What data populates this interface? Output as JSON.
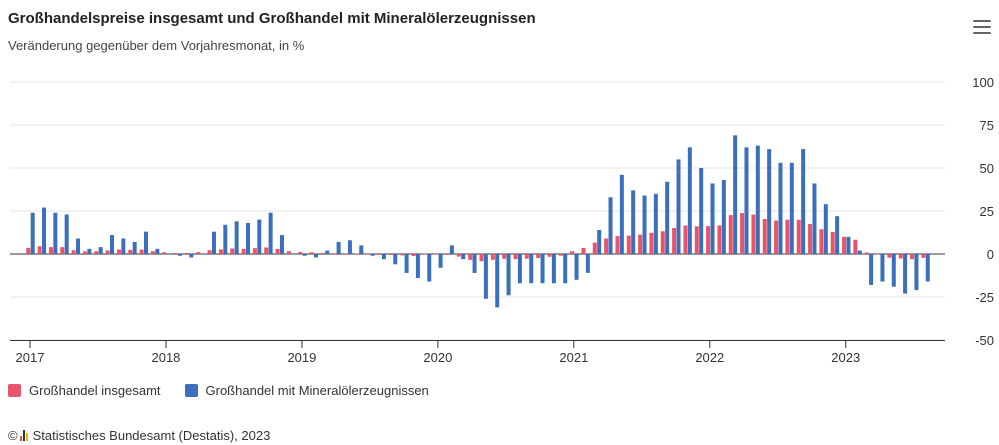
{
  "header": {
    "title": "Großhandelspreise insgesamt und Großhandel mit Mineralölerzeugnissen",
    "subtitle": "Veränderung gegenüber dem Vorjahresmonat, in %"
  },
  "menu_icon": "hamburger-menu-icon",
  "credit": {
    "copyright": "©",
    "text": "Statistisches Bundesamt (Destatis), 2023"
  },
  "colors": {
    "series1": "#e8546b",
    "series2": "#3a6fbe",
    "grid": "#e6e6e6",
    "axis": "#333333"
  },
  "chart_data": {
    "type": "bar",
    "title": "Großhandelspreise insgesamt und Großhandel mit Mineralölerzeugnissen",
    "subtitle": "Veränderung gegenüber dem Vorjahresmonat, in %",
    "xlabel": "",
    "ylabel": "",
    "ylim": [
      -50,
      100
    ],
    "yticks": [
      -50,
      -25,
      0,
      25,
      50,
      75,
      100
    ],
    "x_tick_labels": [
      "2017",
      "2018",
      "2019",
      "2020",
      "2021",
      "2022",
      "2023"
    ],
    "grid": true,
    "legend_position": "bottom-left",
    "period": "2017-01 to 2023-08 (monthly)",
    "categories": [
      "2017-01",
      "2017-02",
      "2017-03",
      "2017-04",
      "2017-05",
      "2017-06",
      "2017-07",
      "2017-08",
      "2017-09",
      "2017-10",
      "2017-11",
      "2017-12",
      "2018-01",
      "2018-02",
      "2018-03",
      "2018-04",
      "2018-05",
      "2018-06",
      "2018-07",
      "2018-08",
      "2018-09",
      "2018-10",
      "2018-11",
      "2018-12",
      "2019-01",
      "2019-02",
      "2019-03",
      "2019-04",
      "2019-05",
      "2019-06",
      "2019-07",
      "2019-08",
      "2019-09",
      "2019-10",
      "2019-11",
      "2019-12",
      "2020-01",
      "2020-02",
      "2020-03",
      "2020-04",
      "2020-05",
      "2020-06",
      "2020-07",
      "2020-08",
      "2020-09",
      "2020-10",
      "2020-11",
      "2020-12",
      "2021-01",
      "2021-02",
      "2021-03",
      "2021-04",
      "2021-05",
      "2021-06",
      "2021-07",
      "2021-08",
      "2021-09",
      "2021-10",
      "2021-11",
      "2021-12",
      "2022-01",
      "2022-02",
      "2022-03",
      "2022-04",
      "2022-05",
      "2022-06",
      "2022-07",
      "2022-08",
      "2022-09",
      "2022-10",
      "2022-11",
      "2022-12",
      "2023-01",
      "2023-02",
      "2023-03",
      "2023-04",
      "2023-05",
      "2023-06",
      "2023-07",
      "2023-08"
    ],
    "series": [
      {
        "name": "Großhandel insgesamt",
        "values": [
          3.6,
          4.5,
          4.0,
          4.0,
          2.2,
          1.5,
          1.6,
          2.1,
          2.6,
          2.4,
          2.6,
          1.6,
          1.0,
          0.6,
          0.6,
          1.1,
          2.2,
          2.7,
          3.2,
          3.0,
          3.4,
          3.8,
          3.0,
          1.6,
          1.2,
          1.0,
          0.6,
          0.4,
          0.4,
          0.2,
          -0.2,
          -0.5,
          -0.6,
          -0.8,
          -1.2,
          0.3,
          -0.1,
          -0.5,
          -1.5,
          -3.4,
          -4.2,
          -3.4,
          -2.8,
          -3.0,
          -2.7,
          -2.3,
          -1.6,
          -1.0,
          1.6,
          3.5,
          6.6,
          9.0,
          10.4,
          10.7,
          11.3,
          12.3,
          13.2,
          15.1,
          16.6,
          16.1,
          16.2,
          16.6,
          22.6,
          23.8,
          22.9,
          20.3,
          19.4,
          19.9,
          19.9,
          17.4,
          14.4,
          12.8,
          10.0,
          8.3,
          0.9,
          -0.2,
          -2.1,
          -2.6,
          -3.0,
          -2.2
        ]
      },
      {
        "name": "Großhandel mit Mineralölerzeugnissen",
        "values": [
          24,
          27,
          24,
          23,
          9,
          3,
          4,
          11,
          9,
          7,
          13,
          3,
          0,
          -1,
          -2,
          0,
          13,
          17,
          19,
          18,
          20,
          24,
          11,
          0,
          -1,
          -2,
          2,
          7,
          8,
          5,
          -1,
          -3,
          -6,
          -11,
          -14,
          -16,
          -8,
          5,
          -3,
          -11,
          -26,
          -31,
          -24,
          -17,
          -17,
          -17,
          -17,
          -17,
          -15,
          -11,
          14,
          33,
          46,
          37,
          34,
          35,
          42,
          55,
          62,
          50,
          41,
          43,
          69,
          62,
          63,
          61,
          53,
          53,
          61,
          41,
          29,
          22,
          10,
          2,
          -18,
          -16,
          -19,
          -23,
          -21,
          -16
        ]
      }
    ]
  }
}
